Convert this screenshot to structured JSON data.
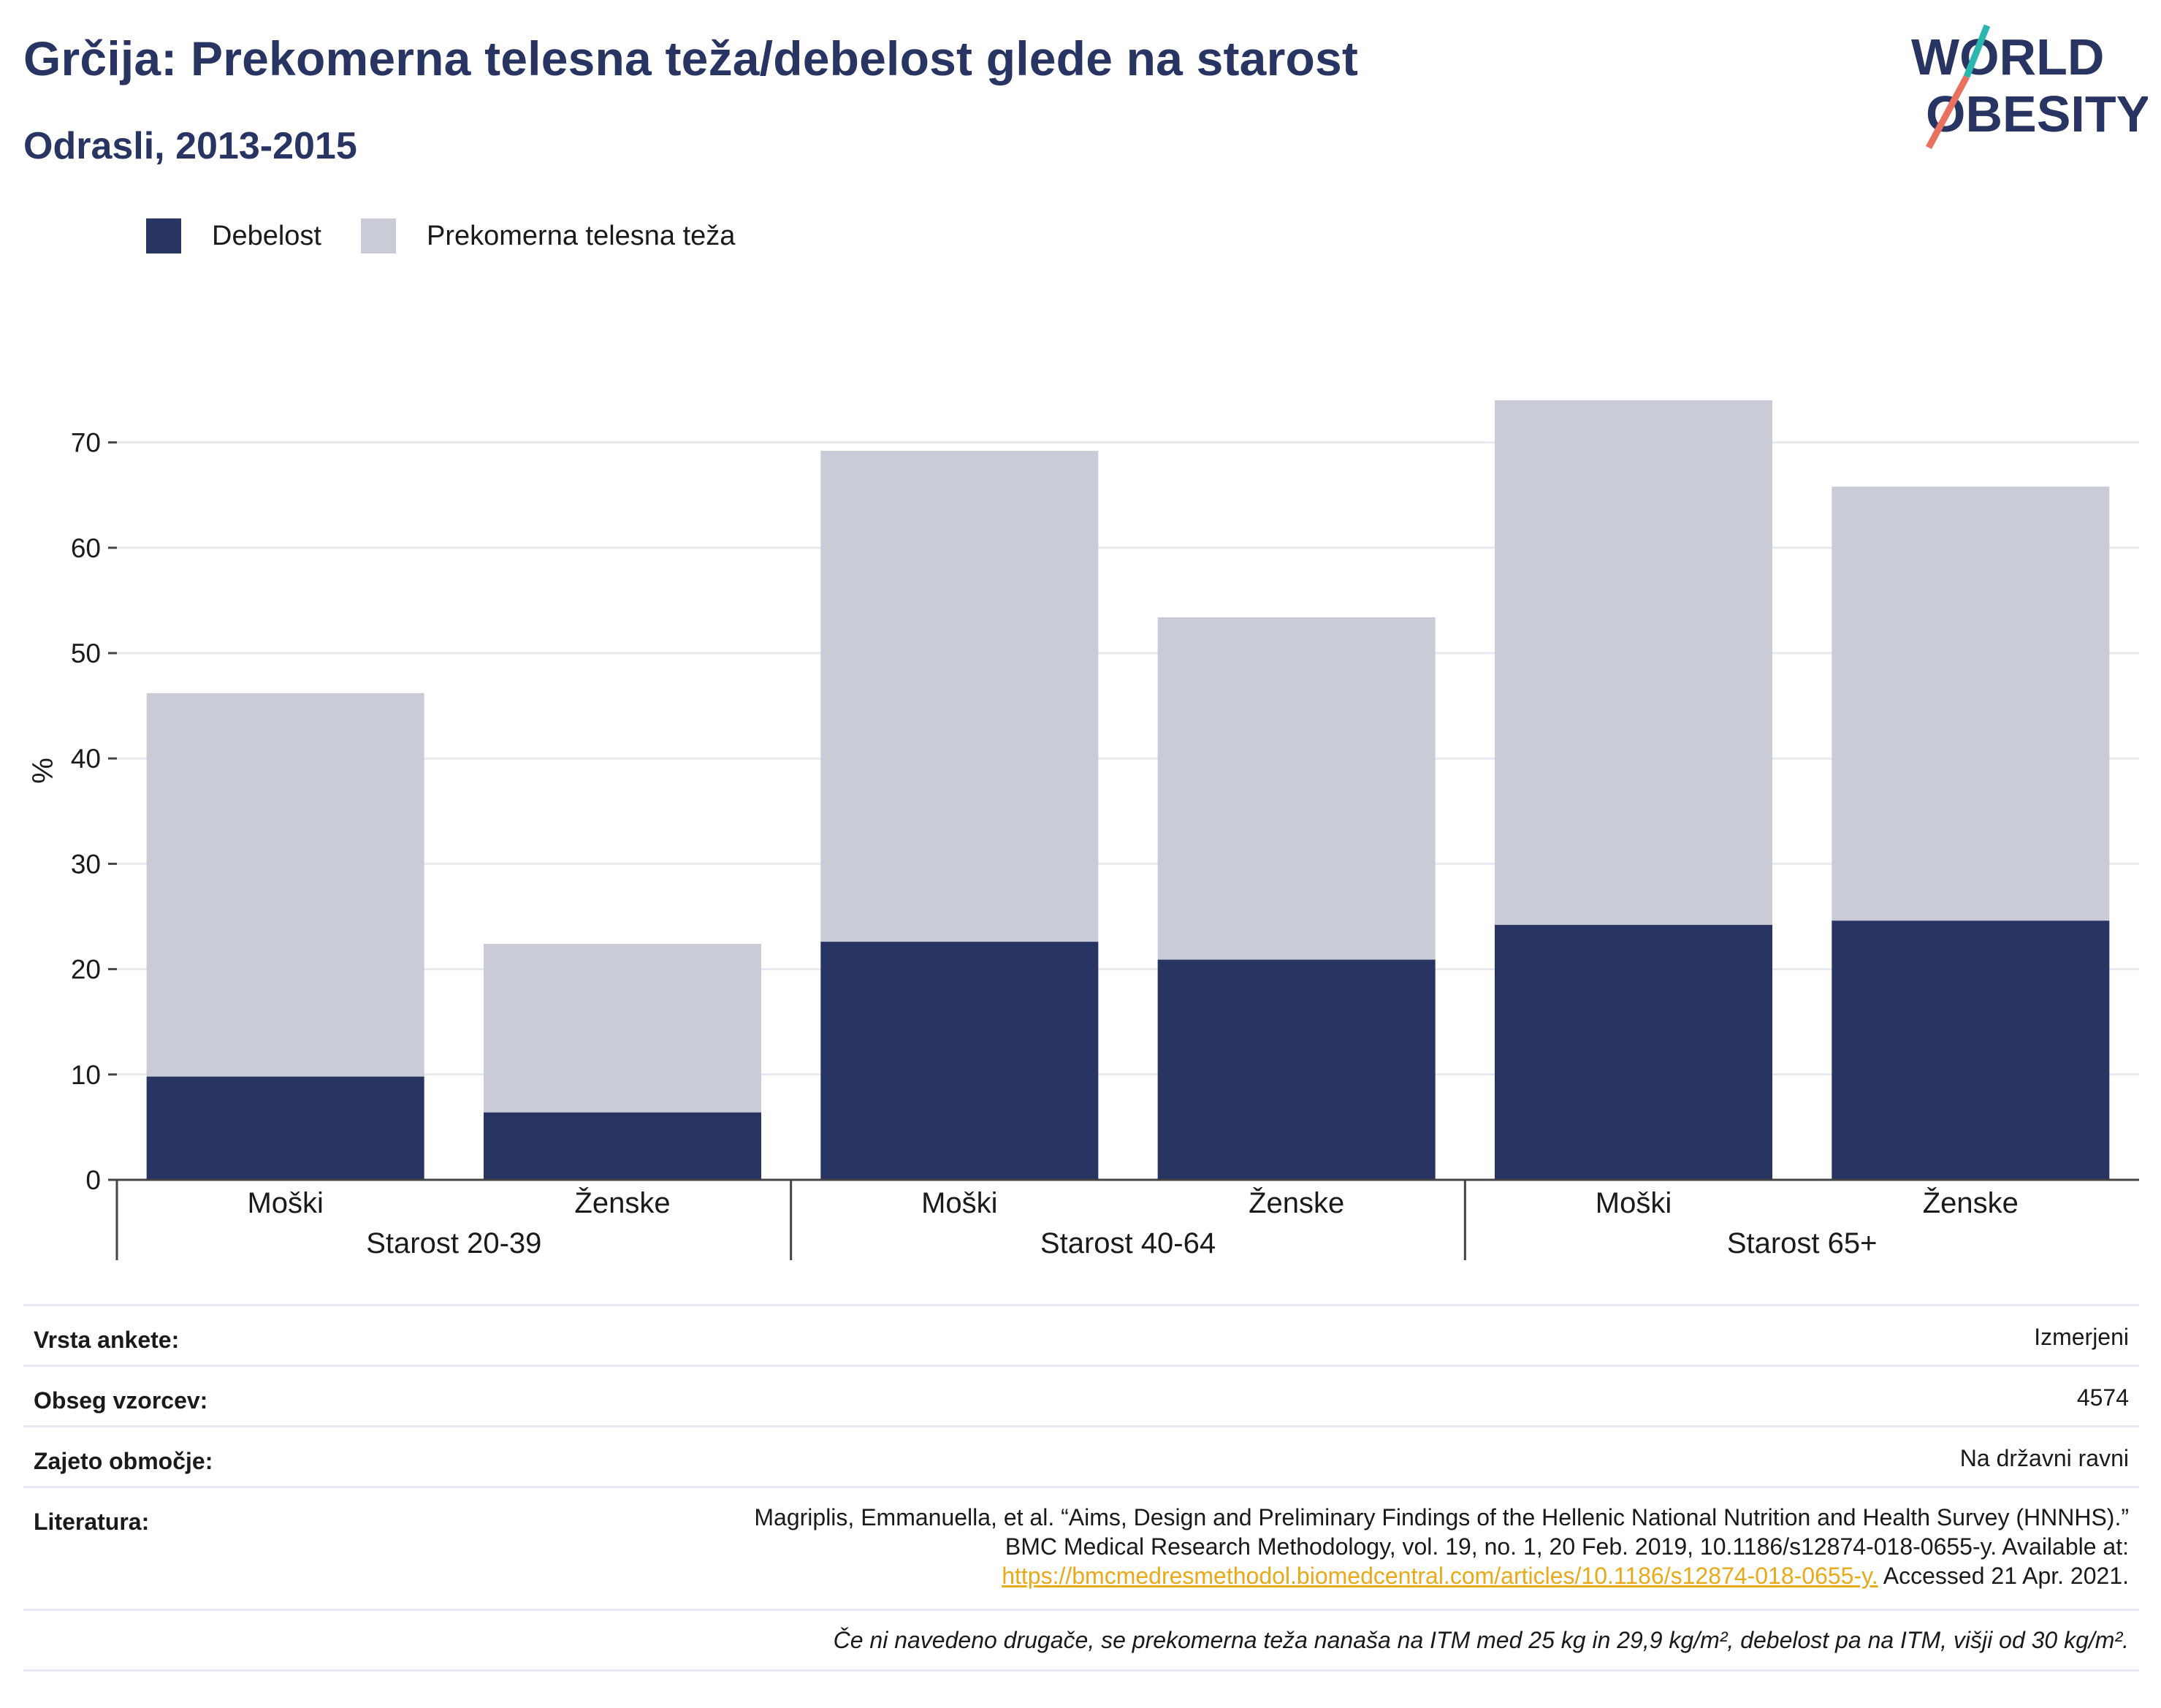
{
  "header": {
    "title": "Grčija: Prekomerna telesna teža/debelost glede na starost",
    "subtitle": "Odrasli, 2013-2015"
  },
  "logo": {
    "line1": "WORLD",
    "line2": "OBESITY"
  },
  "colors": {
    "obesity": "#283462",
    "overweight": "#c9cbd7",
    "title": "#283462",
    "link": "#e8a91b"
  },
  "chart_data": {
    "type": "bar",
    "stacked": true,
    "categories": [
      "Moški",
      "Ženske",
      "Moški",
      "Ženske",
      "Moški",
      "Ženske"
    ],
    "groups": [
      "Starost 20-39",
      "Starost 40-64",
      "Starost 65+"
    ],
    "series": [
      {
        "name": "Debelost",
        "values": [
          9.8,
          6.4,
          22.6,
          20.9,
          24.2,
          24.6
        ]
      },
      {
        "name": "Prekomerna telesna teža",
        "values": [
          36.4,
          16.0,
          46.6,
          32.5,
          49.8,
          41.2
        ]
      }
    ],
    "ylabel": "%",
    "ylim": [
      0,
      75
    ],
    "yticks": [
      0,
      10,
      20,
      30,
      40,
      50,
      60,
      70
    ],
    "grid": true,
    "legend": "top-left"
  },
  "meta": {
    "survey_type_label": "Vrsta ankete:",
    "survey_type_value": "Izmerjeni",
    "sample_size_label": "Obseg vzorcev:",
    "sample_size_value": "4574",
    "coverage_label": "Zajeto območje:",
    "coverage_value": "Na državni ravni",
    "reference_label": "Literatura:",
    "reference_line1": "Magriplis, Emmanuella, et al. “Aims, Design and Preliminary Findings of the Hellenic National Nutrition and Health Survey (HNNHS).”",
    "reference_line2": "BMC Medical Research Methodology, vol. 19, no. 1, 20 Feb. 2019, 10.1186/s12874-018-0655-y. Available at:",
    "reference_link": "https://bmcmedresmethodol.biomedcentral.com/articles/10.1186/s12874-018-0655-y.",
    "reference_accessed": " Accessed 21 Apr. 2021.",
    "footnote": "Če ni navedeno drugače, se prekomerna teža nanaša na ITM med 25 kg in 29,9 kg/m², debelost pa na ITM, višji od 30 kg/m²."
  }
}
